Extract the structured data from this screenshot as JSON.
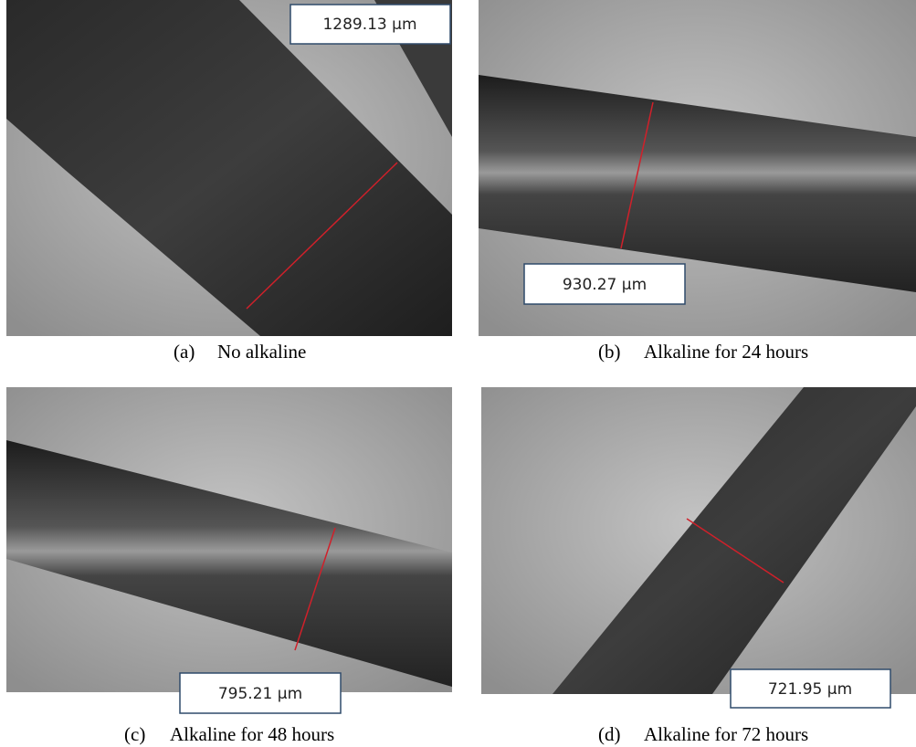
{
  "panels": [
    {
      "label": "(a)",
      "caption": "No alkaline",
      "measurement": "1289.13 µm"
    },
    {
      "label": "(b)",
      "caption": "Alkaline for 24 hours",
      "measurement": "930.27 µm"
    },
    {
      "label": "(c)",
      "caption": "Alkaline for 48 hours",
      "measurement": "795.21 µm"
    },
    {
      "label": "(d)",
      "caption": "Alkaline for 72 hours",
      "measurement": "721.95 µm"
    }
  ]
}
